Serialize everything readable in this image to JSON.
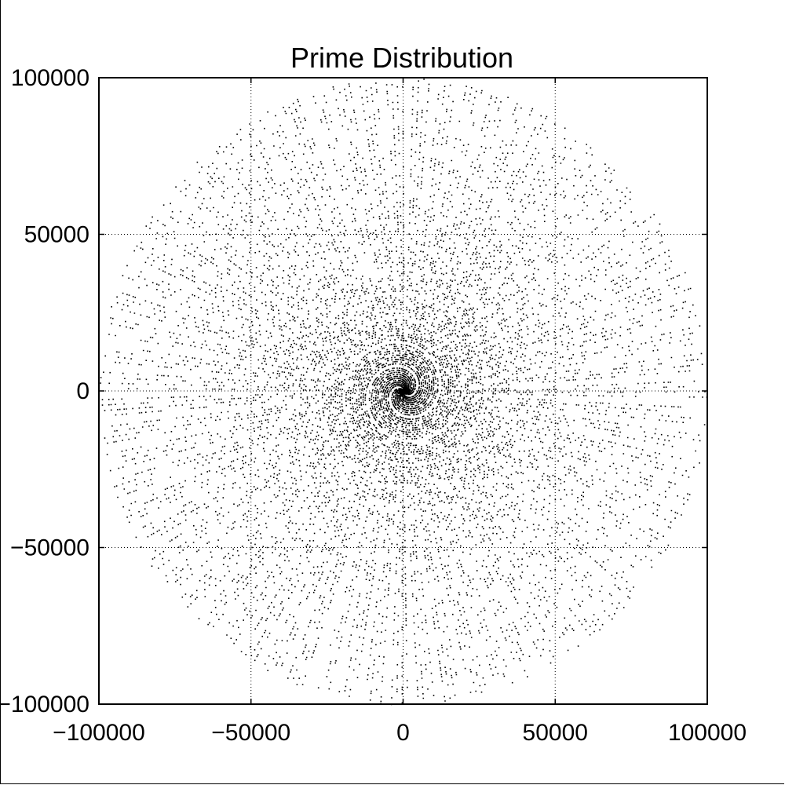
{
  "chart_data": {
    "type": "scatter",
    "title": "Prime Distribution",
    "xlabel": "",
    "ylabel": "",
    "xlim": [
      -100000,
      100000
    ],
    "ylim": [
      -100000,
      100000
    ],
    "x_ticks": [
      -100000,
      -50000,
      0,
      50000,
      100000
    ],
    "y_ticks": [
      -100000,
      -50000,
      0,
      50000,
      100000
    ],
    "x_tick_labels": [
      "−100000",
      "−50000",
      "0",
      "50000",
      "100000"
    ],
    "y_tick_labels": [
      "−100000",
      "−50000",
      "0",
      "50000",
      "100000"
    ],
    "grid": true,
    "grid_style": "dotted",
    "marker_color": "#000000",
    "series": [
      {
        "description_source": "polar plot of primes p at (p*cos(p), p*sin(p)) for primes up to 100000",
        "generator": "primes_polar",
        "max_value": 100000
      }
    ]
  }
}
